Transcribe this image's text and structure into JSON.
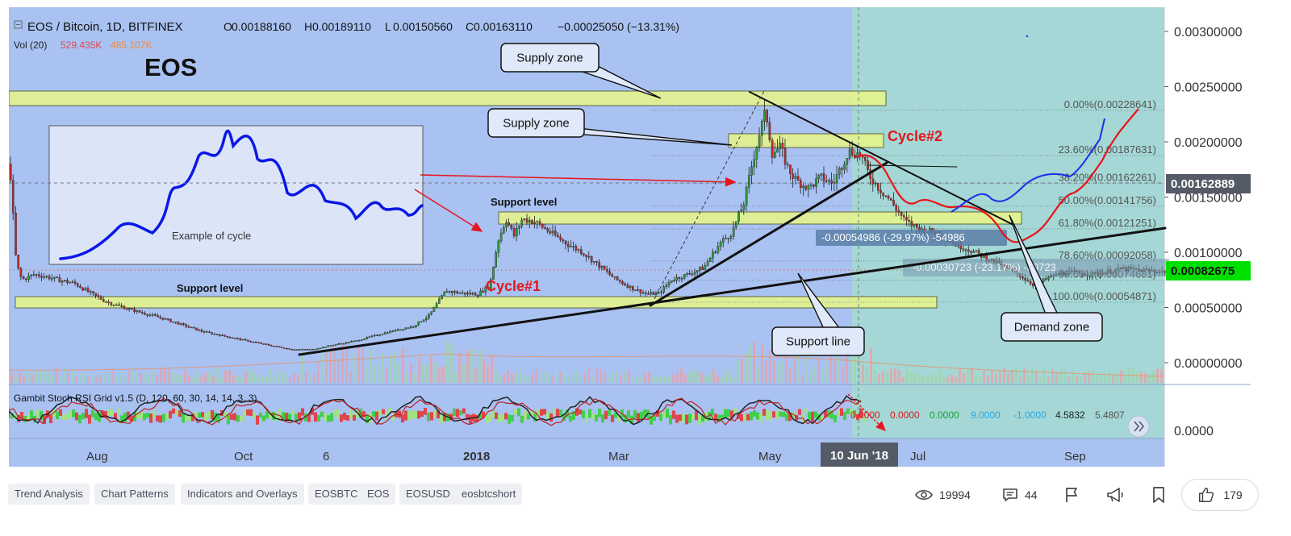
{
  "header": {
    "symbol": "EOS / Bitcoin, 1D, BITFINEX",
    "ohlc": [
      {
        "k": "O",
        "v": "0.00188160"
      },
      {
        "k": "H",
        "v": "0.00189110"
      },
      {
        "k": "L",
        "v": "0.00150560"
      },
      {
        "k": "C",
        "v": "0.00163110"
      }
    ],
    "change": "−0.00025050 (−13.31%)",
    "volume_label": "Vol (20)",
    "volume_v1": "529.435K",
    "volume_v2": "485.107K"
  },
  "chart_data": {
    "type": "candlestick",
    "title": "EOS",
    "price_axis_labels": [
      "0.00300000",
      "0.00250000",
      "0.00200000",
      "0.00150000",
      "0.00100000",
      "0.00050000",
      "0.00000000"
    ],
    "price_axis_values": [
      0.003,
      0.0025,
      0.002,
      0.0015,
      0.001,
      0.0005,
      0.0
    ],
    "time_axis_labels": [
      "Aug",
      "Oct",
      "6",
      "2018",
      "Mar",
      "May",
      "Jul",
      "Sep"
    ],
    "current_price_tag": "0.00082675",
    "crosshair_price_tag": "0.00162889",
    "crosshair_time_tag": "10 Jun '18",
    "price_path_points": [
      [
        0,
        0.0018
      ],
      [
        8,
        0.0009
      ],
      [
        15,
        0.00075
      ],
      [
        30,
        0.0008
      ],
      [
        45,
        0.00078
      ],
      [
        60,
        0.00075
      ],
      [
        80,
        0.00072
      ],
      [
        100,
        0.00063
      ],
      [
        120,
        0.00055
      ],
      [
        150,
        0.00048
      ],
      [
        190,
        0.0004
      ],
      [
        240,
        0.00028
      ],
      [
        280,
        0.00022
      ],
      [
        320,
        0.00016
      ],
      [
        350,
        0.00012
      ],
      [
        375,
        0.00012
      ],
      [
        400,
        0.00016
      ],
      [
        430,
        0.0002
      ],
      [
        470,
        0.00028
      ],
      [
        500,
        0.00033
      ],
      [
        520,
        0.00043
      ],
      [
        540,
        0.00065
      ],
      [
        560,
        0.00063
      ],
      [
        580,
        0.00062
      ],
      [
        595,
        0.0007
      ],
      [
        605,
        0.0011
      ],
      [
        615,
        0.0013
      ],
      [
        625,
        0.00115
      ],
      [
        635,
        0.0013
      ],
      [
        650,
        0.00128
      ],
      [
        670,
        0.00118
      ],
      [
        690,
        0.00108
      ],
      [
        710,
        0.001
      ],
      [
        730,
        0.00088
      ],
      [
        750,
        0.00076
      ],
      [
        770,
        0.00068
      ],
      [
        790,
        0.00062
      ],
      [
        805,
        0.00063
      ],
      [
        820,
        0.00075
      ],
      [
        840,
        0.0008
      ],
      [
        860,
        0.00086
      ],
      [
        880,
        0.00108
      ],
      [
        895,
        0.00118
      ],
      [
        910,
        0.00145
      ],
      [
        920,
        0.0018
      ],
      [
        930,
        0.0021
      ],
      [
        937,
        0.00228
      ],
      [
        945,
        0.0019
      ],
      [
        955,
        0.00195
      ],
      [
        965,
        0.00175
      ],
      [
        975,
        0.00165
      ],
      [
        990,
        0.00158
      ],
      [
        1005,
        0.00168
      ],
      [
        1020,
        0.00162
      ],
      [
        1040,
        0.00192
      ],
      [
        1055,
        0.00188
      ],
      [
        1065,
        0.0017
      ],
      [
        1075,
        0.0016
      ],
      [
        1090,
        0.00148
      ],
      [
        1110,
        0.00128
      ],
      [
        1130,
        0.0012
      ],
      [
        1150,
        0.00118
      ],
      [
        1170,
        0.00108
      ],
      [
        1190,
        0.00102
      ],
      [
        1210,
        0.00095
      ],
      [
        1230,
        0.00088
      ],
      [
        1250,
        0.0008
      ],
      [
        1270,
        0.0007
      ],
      [
        1290,
        0.00078
      ],
      [
        1310,
        0.00082
      ],
      [
        1340,
        0.0008
      ],
      [
        1380,
        0.00085
      ],
      [
        1420,
        0.00083
      ],
      [
        1440,
        0.00082
      ]
    ],
    "fibonacci_levels": [
      {
        "label": "0.00%(0.00228641)",
        "value": 0.00228641
      },
      {
        "label": "23.60%(0.00187631)",
        "value": 0.00187631
      },
      {
        "label": "38.20%(0.00162261)",
        "value": 0.00162261
      },
      {
        "label": "50.00%(0.00141756)",
        "value": 0.00141756
      },
      {
        "label": "61.80%(0.00121251)",
        "value": 0.00121251
      },
      {
        "label": "78.60%(0.00092058)",
        "value": 0.00092058
      },
      {
        "label": "88.60%(0.00074681)",
        "value": 0.00074681
      },
      {
        "label": "100.00%(0.00054871)",
        "value": 0.00054871
      }
    ],
    "annotations": {
      "callouts": [
        "Supply zone",
        "Supply zone",
        "Support line",
        "Demand zone"
      ],
      "support_labels": [
        "Support level",
        "Support level"
      ],
      "cycle_labels": [
        "Cycle#1",
        "Cycle#2"
      ],
      "example_caption": "Example of cycle",
      "measure_1": "-0.00054986 (-29.97%) -54986",
      "measure_2": "-0.00030723 (-23.17%) -30723"
    },
    "indicator": {
      "name": "Gambit Stoch RSI Grid v1.5 (D, 120, 60, 30, 14, 14, 3, 3)",
      "axis_label": "0.0000",
      "values": [
        {
          "v": "0.0000",
          "color": "#e0181c"
        },
        {
          "v": "0.0000",
          "color": "#e0181c"
        },
        {
          "v": "0.0000",
          "color": "#18a330"
        },
        {
          "v": "9.0000",
          "color": "#29a7e6"
        },
        {
          "v": "-1.0000",
          "color": "#29a7e6"
        },
        {
          "v": "4.5832",
          "color": "#222222"
        },
        {
          "v": "5.4807",
          "color": "#555555"
        }
      ]
    },
    "colors": {
      "background": "#a9c2f2",
      "highlight": "#a3d9d2",
      "zone_fill": "#e6f58a",
      "up_candle": "#2e9c3a",
      "down_candle": "#c02a2a",
      "cycle_red": "#e8141c",
      "projection_blue": "#1a2ee8"
    }
  },
  "footer": {
    "tags": [
      "Trend Analysis",
      "Chart Patterns",
      "Indicators and Overlays",
      "EOSBTC",
      "EOS",
      "EOSUSD",
      "eosbtcshort"
    ],
    "views": "19994",
    "comments": "44",
    "likes": "179"
  }
}
